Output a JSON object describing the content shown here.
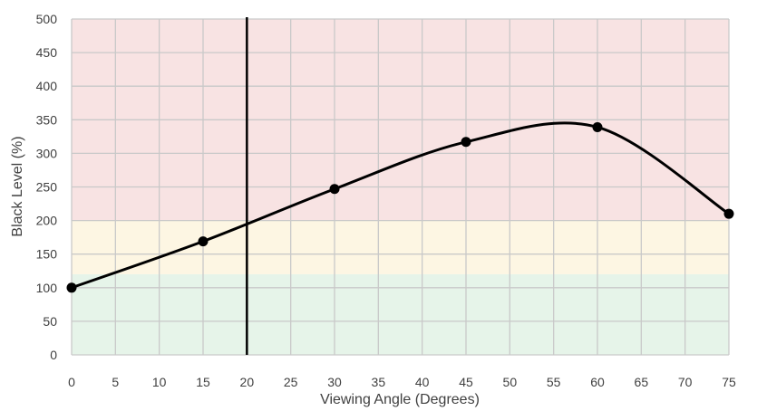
{
  "chart_data": {
    "type": "line",
    "title": "",
    "xlabel": "Viewing Angle (Degrees)",
    "ylabel": "Black Level (%)",
    "xlim": [
      0,
      75
    ],
    "ylim": [
      0,
      500
    ],
    "xticks": [
      "0",
      "5",
      "10",
      "15",
      "20",
      "25",
      "30",
      "35",
      "40",
      "45",
      "50",
      "55",
      "60",
      "65",
      "70",
      "75"
    ],
    "yticks": [
      "0",
      "50",
      "100",
      "150",
      "200",
      "250",
      "300",
      "350",
      "400",
      "450",
      "500"
    ],
    "grid": true,
    "legend": "none",
    "bands": [
      {
        "from": 0,
        "to": 120,
        "color": "#e6f4e9"
      },
      {
        "from": 120,
        "to": 200,
        "color": "#fdf6e3"
      },
      {
        "from": 200,
        "to": 500,
        "color": "#f8e3e3"
      }
    ],
    "vline": {
      "x": 20,
      "color": "#000000"
    },
    "series": [
      {
        "color": "#000000",
        "x": [
          0,
          15,
          30,
          45,
          60,
          75
        ],
        "y": [
          100,
          169,
          247,
          317,
          339,
          210
        ]
      }
    ],
    "colors": {
      "grid": "#c9c9c9",
      "text": "#404040",
      "line": "#000000"
    }
  }
}
